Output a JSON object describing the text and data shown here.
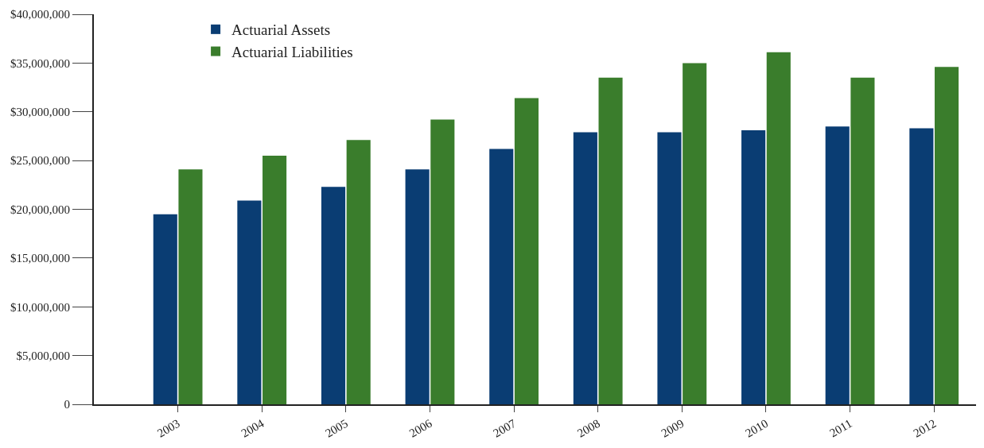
{
  "chart_data": {
    "type": "bar",
    "categories": [
      "2003",
      "2004",
      "2005",
      "2006",
      "2007",
      "2008",
      "2009",
      "2010",
      "2011",
      "2012"
    ],
    "series": [
      {
        "name": "Actuarial Assets",
        "color": "#0a3d73",
        "values": [
          19500000,
          20900000,
          22300000,
          24100000,
          26200000,
          27900000,
          27900000,
          28100000,
          28500000,
          28300000
        ]
      },
      {
        "name": "Actuarial Liabilities",
        "color": "#3a7d2c",
        "values": [
          24100000,
          25500000,
          27100000,
          29200000,
          31400000,
          33500000,
          35000000,
          36100000,
          33500000,
          34600000
        ]
      }
    ],
    "ylim": [
      0,
      40000000
    ],
    "yticks": [
      {
        "value": 0,
        "label": "0"
      },
      {
        "value": 5000000,
        "label": "$5,000,000"
      },
      {
        "value": 10000000,
        "label": "$10,000,000"
      },
      {
        "value": 15000000,
        "label": "$15,000,000"
      },
      {
        "value": 20000000,
        "label": "$20,000,000"
      },
      {
        "value": 25000000,
        "label": "$25,000,000"
      },
      {
        "value": 30000000,
        "label": "$30,000,000"
      },
      {
        "value": 35000000,
        "label": "$35,000,000"
      },
      {
        "value": 40000000,
        "label": "$40,000,000"
      }
    ],
    "legend": "top left"
  }
}
